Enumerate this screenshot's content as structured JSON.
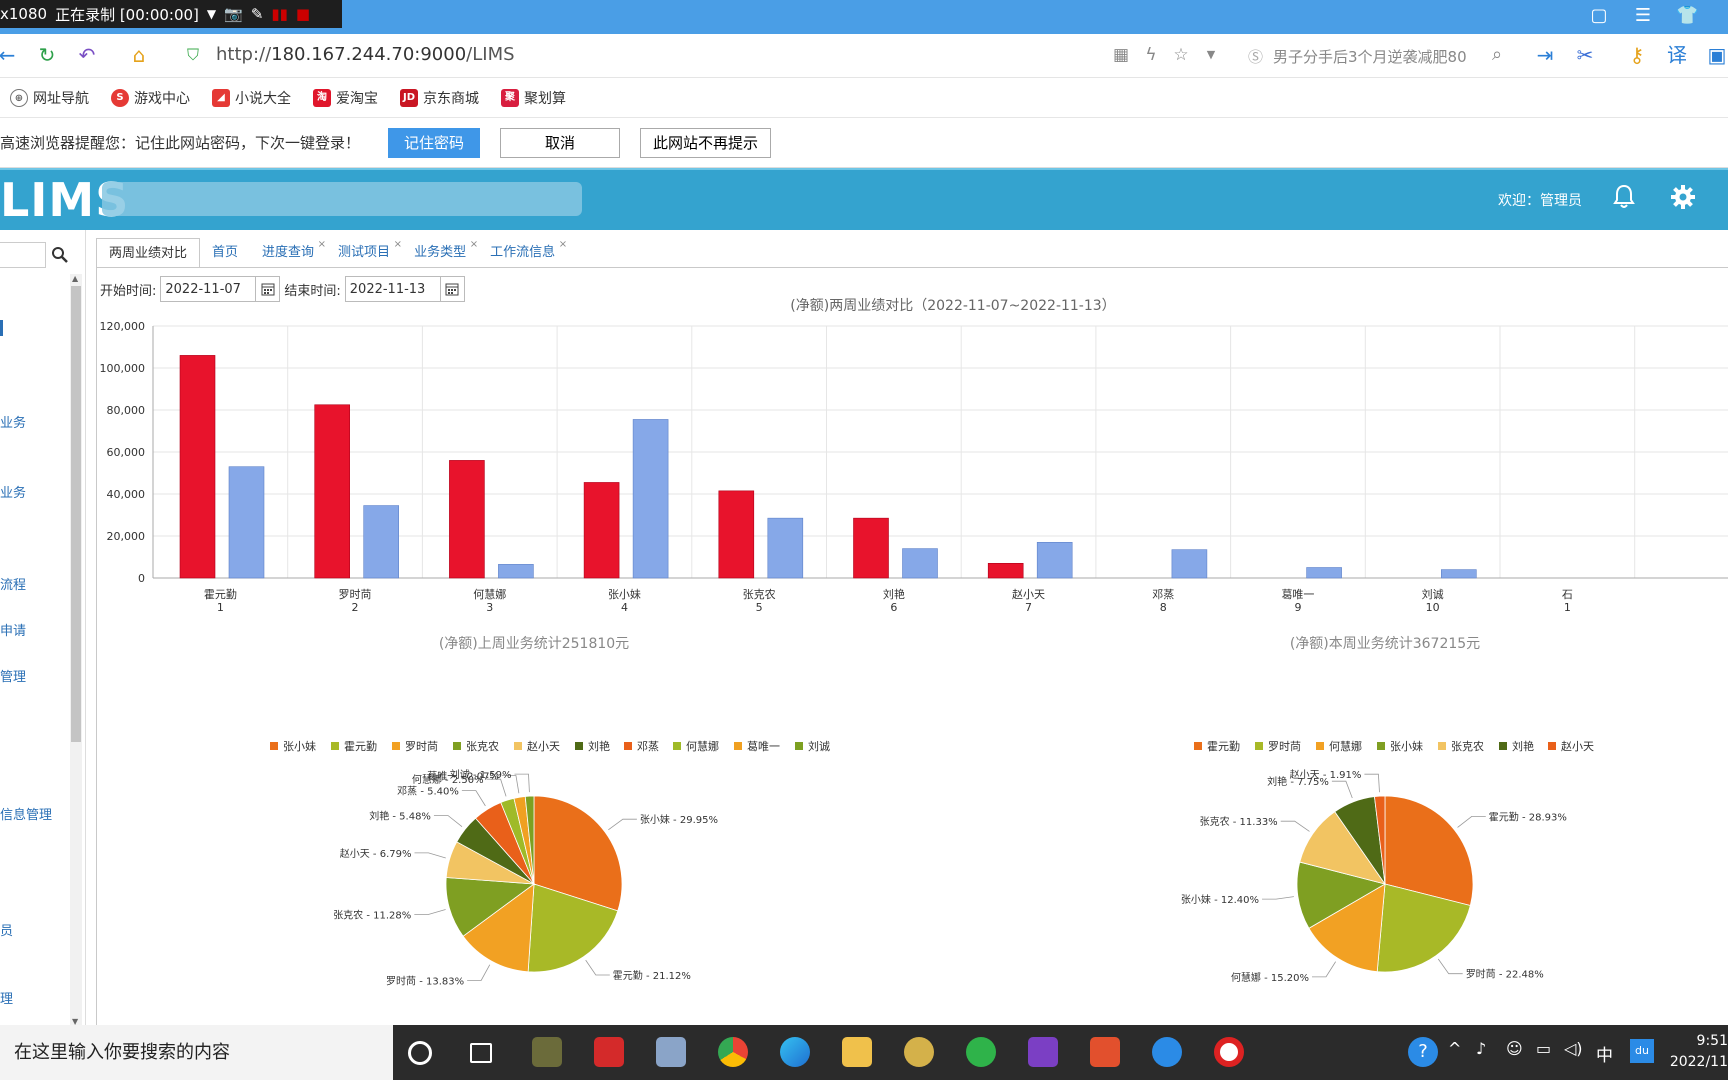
{
  "recorder": {
    "resolution": "x1080",
    "status": "正在录制 [00:00:00]"
  },
  "browser": {
    "url_prefix": "http://",
    "url_host": "180.167.244.70:9000",
    "url_path": "/LIMS",
    "search_placeholder": "男子分手后3个月逆袭减肥80",
    "bookmarks": [
      {
        "label": "网址导航",
        "icon": "globe-icon",
        "color": "#666666"
      },
      {
        "label": "游戏中心",
        "icon": "game-icon",
        "color": "#e53935"
      },
      {
        "label": "小说大全",
        "icon": "book-icon",
        "color": "#e53935"
      },
      {
        "label": "爱淘宝",
        "icon": "taobao-icon",
        "color": "#e0162b"
      },
      {
        "label": "京东商城",
        "icon": "jd-icon",
        "color": "#c91623"
      },
      {
        "label": "聚划算",
        "icon": "juhuasuan-icon",
        "color": "#d81e3f"
      }
    ],
    "password_prompt": {
      "message": "高速浏览器提醒您：记住此网站密码，下次一键登录！",
      "remember": "记住密码",
      "cancel": "取消",
      "never": "此网站不再提示"
    }
  },
  "app": {
    "logo": "LIMS",
    "welcome": "欢迎：管理员"
  },
  "sidebar": {
    "items": [
      "业务",
      "业务",
      "流程",
      "申请",
      "管理",
      "信息管理",
      "员",
      "理"
    ]
  },
  "tabs": [
    {
      "label": "两周业绩对比",
      "active": true,
      "closable": false
    },
    {
      "label": "首页",
      "active": false,
      "closable": false
    },
    {
      "label": "进度查询",
      "active": false,
      "closable": true
    },
    {
      "label": "测试项目",
      "active": false,
      "closable": true
    },
    {
      "label": "业务类型",
      "active": false,
      "closable": true
    },
    {
      "label": "工作流信息",
      "active": false,
      "closable": true
    }
  ],
  "filters": {
    "start_label": "开始时间:",
    "start_value": "2022-11-07",
    "end_label": "结束时间:",
    "end_value": "2022-11-13"
  },
  "chart_data": [
    {
      "type": "bar",
      "title": "(净额)两周业绩对比（2022-11-07~2022-11-13）",
      "categories": [
        "霍元勤\n1",
        "罗时苘\n2",
        "何慧娜\n3",
        "张小妹\n4",
        "张克农\n5",
        "刘艳\n6",
        "赵小天\n7",
        "邓蒸\n8",
        "葛唯一\n9",
        "刘诚\n10",
        "石\n1"
      ],
      "ylim": [
        0,
        120000
      ],
      "yticks": [
        "0",
        "20,000",
        "40,000",
        "60,000",
        "80,000",
        "100,000",
        "120,000"
      ],
      "series": [
        {
          "color": "#e8132c",
          "values": [
            106000,
            82500,
            56000,
            45500,
            41500,
            28500,
            7000,
            0,
            0,
            0,
            0
          ]
        },
        {
          "color": "#86a8e8",
          "values": [
            53000,
            34500,
            6500,
            75500,
            28500,
            14000,
            17000,
            13500,
            5000,
            4000,
            0
          ]
        }
      ],
      "grid": true
    },
    {
      "type": "pie",
      "title": "(净额)上周业务统计251810元",
      "legend": [
        "张小妹",
        "霍元勤",
        "罗时苘",
        "张克农",
        "赵小天",
        "刘艳",
        "邓蒸",
        "何慧娜",
        "葛唯一",
        "刘诚"
      ],
      "slices": [
        {
          "label": "张小妹 - 29.95%",
          "value": 29.95,
          "color": "#ea6f1a"
        },
        {
          "label": "霍元勤 - 21.12%",
          "value": 21.12,
          "color": "#a8b927"
        },
        {
          "label": "罗时苘 - 13.83%",
          "value": 13.83,
          "color": "#f2a123"
        },
        {
          "label": "张克农 - 11.28%",
          "value": 11.28,
          "color": "#7f9f22"
        },
        {
          "label": "赵小天 - 6.79%",
          "value": 6.79,
          "color": "#f2c462"
        },
        {
          "label": "刘艳 - 5.48%",
          "value": 5.48,
          "color": "#4f6a16"
        },
        {
          "label": "邓蒸 - 5.40%",
          "value": 5.4,
          "color": "#e9601a"
        },
        {
          "label": "何慧娜 - 2.50%",
          "value": 2.5,
          "color": "#9fba28"
        },
        {
          "label": "葛唯一 - 2.07%",
          "value": 2.07,
          "color": "#f0a021"
        },
        {
          "label": "刘诚 - 1.59%",
          "value": 1.59,
          "color": "#7da021"
        }
      ]
    },
    {
      "type": "pie",
      "title": "(净额)本周业务统计367215元",
      "legend": [
        "霍元勤",
        "罗时苘",
        "何慧娜",
        "张小妹",
        "张克农",
        "刘艳",
        "赵小天"
      ],
      "slices": [
        {
          "label": "霍元勤 - 28.93%",
          "value": 28.93,
          "color": "#ea6f1a"
        },
        {
          "label": "罗时苘 - 22.48%",
          "value": 22.48,
          "color": "#a8b927"
        },
        {
          "label": "何慧娜 - 15.20%",
          "value": 15.2,
          "color": "#f2a123"
        },
        {
          "label": "张小妹 - 12.40%",
          "value": 12.4,
          "color": "#7f9f22"
        },
        {
          "label": "张克农 - 11.33%",
          "value": 11.33,
          "color": "#f2c462"
        },
        {
          "label": "刘艳 - 7.75%",
          "value": 7.75,
          "color": "#4f6a16"
        },
        {
          "label": "赵小天 - 1.91%",
          "value": 1.91,
          "color": "#e9601a"
        }
      ]
    }
  ],
  "taskbar": {
    "search_placeholder": "在这里输入你要搜索的内容",
    "ime": "中",
    "time": "9:51",
    "date": "2022/11"
  }
}
